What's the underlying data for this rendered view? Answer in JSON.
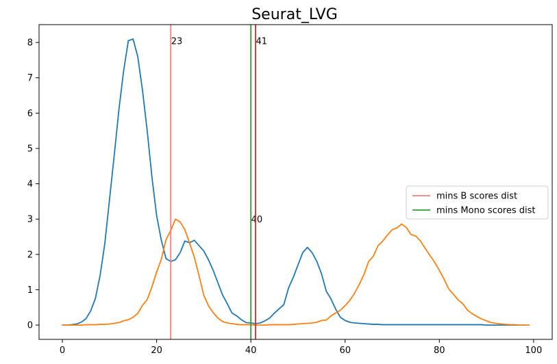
{
  "chart_data": {
    "type": "line",
    "title": "Seurat_LVG",
    "xlabel": "",
    "ylabel": "",
    "xlim": [
      -4.95,
      103.95
    ],
    "ylim": [
      -0.405,
      8.505
    ],
    "xticks": [
      0,
      20,
      40,
      60,
      80,
      100
    ],
    "yticks": [
      0,
      1,
      2,
      3,
      4,
      5,
      6,
      7,
      8
    ],
    "grid": false,
    "legend_position": "center-right",
    "series": [
      {
        "color": "#1f77b4",
        "x": [
          0,
          1,
          2,
          3,
          4,
          5,
          6,
          7,
          8,
          9,
          10,
          11,
          12,
          13,
          14,
          15,
          16,
          17,
          18,
          19,
          20,
          21,
          22,
          23,
          24,
          25,
          26,
          27,
          28,
          29,
          30,
          31,
          32,
          33,
          34,
          35,
          36,
          37,
          38,
          39,
          40,
          41,
          42,
          43,
          44,
          45,
          46,
          47,
          48,
          49,
          50,
          51,
          52,
          53,
          54,
          55,
          56,
          57,
          58,
          59,
          60,
          61,
          62,
          63,
          64,
          65,
          66,
          67,
          68,
          69,
          70,
          71,
          72,
          73,
          74,
          75,
          76,
          77,
          78,
          79,
          80,
          81,
          82,
          83,
          84,
          85,
          86,
          87,
          88,
          89,
          90,
          91,
          92,
          93,
          94,
          95,
          96,
          97,
          98,
          99
        ],
        "y": [
          0.0,
          0.0,
          0.01,
          0.03,
          0.08,
          0.18,
          0.4,
          0.75,
          1.4,
          2.3,
          3.55,
          4.8,
          6.1,
          7.2,
          8.05,
          8.1,
          7.6,
          6.65,
          5.5,
          4.2,
          3.1,
          2.4,
          1.88,
          1.8,
          1.85,
          2.05,
          2.38,
          2.33,
          2.4,
          2.25,
          2.1,
          1.85,
          1.55,
          1.2,
          0.85,
          0.6,
          0.34,
          0.26,
          0.15,
          0.07,
          0.06,
          0.04,
          0.06,
          0.12,
          0.2,
          0.34,
          0.46,
          0.58,
          1.05,
          1.35,
          1.7,
          2.05,
          2.2,
          2.05,
          1.8,
          1.45,
          0.96,
          0.74,
          0.45,
          0.22,
          0.13,
          0.08,
          0.06,
          0.05,
          0.04,
          0.03,
          0.02,
          0.02,
          0.01,
          0.01,
          0.01,
          0.01,
          0.01,
          0.01,
          0.01,
          0.01,
          0.01,
          0.01,
          0.01,
          0.01,
          0.01,
          0.01,
          0.01,
          0.01,
          0.01,
          0.01,
          0.01,
          0.01,
          0.01,
          0.01,
          0.0,
          0.0,
          0.0,
          0.0,
          0.0,
          0.0,
          0.0,
          0.0,
          0.0,
          0.0
        ]
      },
      {
        "color": "#ff7f0e",
        "x": [
          0,
          1,
          2,
          3,
          4,
          5,
          6,
          7,
          8,
          9,
          10,
          11,
          12,
          13,
          14,
          15,
          16,
          17,
          18,
          19,
          20,
          21,
          22,
          23,
          24,
          25,
          26,
          27,
          28,
          29,
          30,
          31,
          32,
          33,
          34,
          35,
          36,
          37,
          38,
          39,
          40,
          41,
          42,
          43,
          44,
          45,
          46,
          47,
          48,
          49,
          50,
          51,
          52,
          53,
          54,
          55,
          56,
          57,
          58,
          59,
          60,
          61,
          62,
          63,
          64,
          65,
          66,
          67,
          68,
          69,
          70,
          71,
          72,
          73,
          74,
          75,
          76,
          77,
          78,
          79,
          80,
          81,
          82,
          83,
          84,
          85,
          86,
          87,
          88,
          89,
          90,
          91,
          92,
          93,
          94,
          95,
          96,
          97,
          98,
          99
        ],
        "y": [
          0.0,
          0.0,
          0.0,
          0.0,
          0.0,
          0.01,
          0.01,
          0.01,
          0.02,
          0.02,
          0.03,
          0.05,
          0.07,
          0.12,
          0.15,
          0.22,
          0.33,
          0.56,
          0.72,
          1.08,
          1.5,
          1.86,
          2.42,
          2.68,
          3.0,
          2.92,
          2.7,
          2.32,
          1.92,
          1.4,
          0.85,
          0.55,
          0.35,
          0.2,
          0.1,
          0.06,
          0.04,
          0.02,
          0.01,
          0.01,
          0.01,
          0.0,
          0.0,
          0.0,
          0.01,
          0.01,
          0.01,
          0.01,
          0.01,
          0.02,
          0.03,
          0.04,
          0.05,
          0.06,
          0.08,
          0.13,
          0.14,
          0.26,
          0.34,
          0.42,
          0.55,
          0.7,
          0.9,
          1.15,
          1.43,
          1.8,
          1.95,
          2.25,
          2.38,
          2.55,
          2.7,
          2.75,
          2.86,
          2.76,
          2.56,
          2.52,
          2.38,
          2.17,
          1.97,
          1.78,
          1.55,
          1.3,
          1.02,
          0.87,
          0.71,
          0.6,
          0.42,
          0.32,
          0.24,
          0.17,
          0.12,
          0.07,
          0.05,
          0.03,
          0.02,
          0.01,
          0.01,
          0.0,
          0.0,
          0.0
        ]
      }
    ],
    "vlines": [
      {
        "x": 23,
        "color": "#f08080",
        "label": "23",
        "label_y": 8.05
      },
      {
        "x": 40,
        "color": "#2ca02c",
        "label": "40",
        "label_y": 3.0
      },
      {
        "x": 41,
        "color": "#d62728",
        "label": "41",
        "label_y": 8.05
      }
    ],
    "legend": [
      {
        "label": "mins B scores dist",
        "color": "#f08080"
      },
      {
        "label": "mins Mono scores dist",
        "color": "#2ca02c"
      }
    ]
  }
}
